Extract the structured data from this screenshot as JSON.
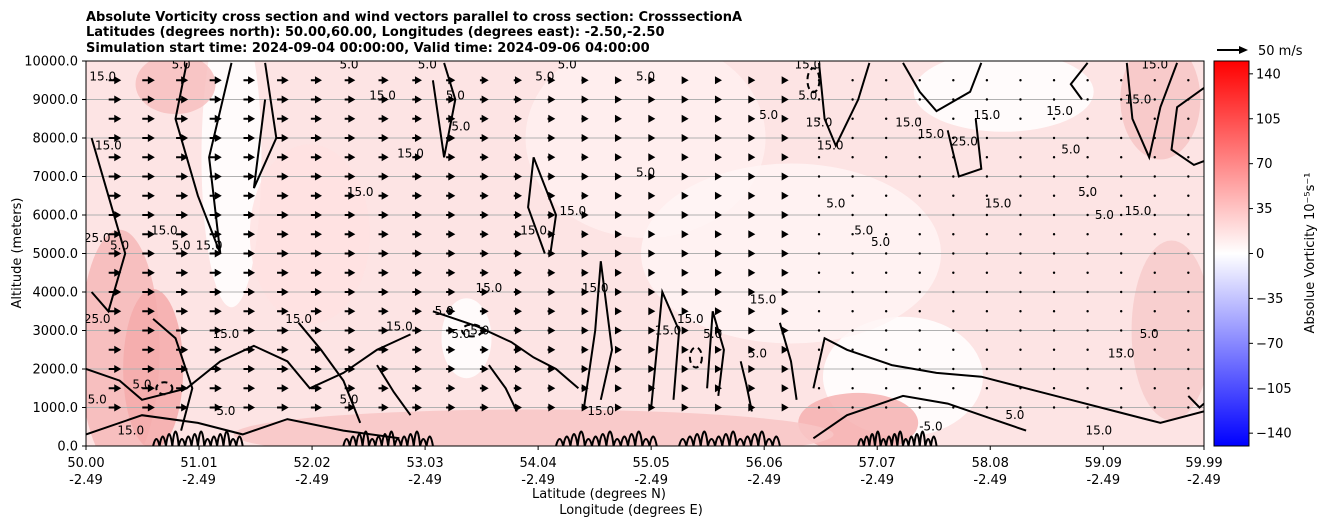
{
  "chart_data": {
    "type": "heatmap",
    "title_lines": [
      "Absolute Vorticity cross section and wind vectors parallel to cross section: CrosssectionA",
      "Latitudes (degrees north): 50.00,60.00, Longitudes (degrees east): -2.50,-2.50",
      "Simulation start time: 2024-09-04 00:00:00, Valid time: 2024-09-06 04:00:00"
    ],
    "ylabel": "Altitude (meters)",
    "xlabel_line1": "Latitude (degrees N)",
    "xlabel_line2": "Longitude (degrees E)",
    "ylim": [
      0,
      10000
    ],
    "yticks": [
      "0.0",
      "1000.0",
      "2000.0",
      "3000.0",
      "4000.0",
      "5000.0",
      "6000.0",
      "7000.0",
      "8000.0",
      "9000.0",
      "10000.0"
    ],
    "xlim": [
      50.0,
      59.99
    ],
    "xticks": [
      {
        "lat": 50.0,
        "label1": "50.00",
        "label2": "-2.49"
      },
      {
        "lat": 51.01,
        "label1": "51.01",
        "label2": "-2.49"
      },
      {
        "lat": 52.02,
        "label1": "52.02",
        "label2": "-2.49"
      },
      {
        "lat": 53.03,
        "label1": "53.03",
        "label2": "-2.49"
      },
      {
        "lat": 54.04,
        "label1": "54.04",
        "label2": "-2.49"
      },
      {
        "lat": 55.05,
        "label1": "55.05",
        "label2": "-2.49"
      },
      {
        "lat": 56.06,
        "label1": "56.06",
        "label2": "-2.49"
      },
      {
        "lat": 57.07,
        "label1": "57.07",
        "label2": "-2.49"
      },
      {
        "lat": 58.08,
        "label1": "58.08",
        "label2": "-2.49"
      },
      {
        "lat": 59.09,
        "label1": "59.09",
        "label2": "-2.49"
      },
      {
        "lat": 59.99,
        "label1": "59.99",
        "label2": "-2.49"
      }
    ],
    "grid": "horizontal",
    "colorbar": {
      "label": "Absolue Vorticity 10⁻⁵s⁻¹",
      "range": [
        -150,
        150
      ],
      "ticks": [
        "140",
        "105",
        "70",
        "35",
        "0",
        "−35",
        "−70",
        "−105",
        "−140"
      ],
      "tick_values": [
        140,
        105,
        70,
        35,
        0,
        -35,
        -70,
        -105,
        -140
      ],
      "colormap": "bwr",
      "colors": {
        "low": "#0000ff",
        "mid": "#ffffff",
        "high": "#ff0000"
      }
    },
    "quiver_key": {
      "label": "50 m/s",
      "value": 50
    },
    "wind_vectors": {
      "direction": "northward (parallel to cross section)",
      "columns_lat": [
        50.25,
        50.55,
        50.85,
        51.15,
        51.45,
        51.75,
        52.05,
        52.35,
        52.65,
        52.95,
        53.25,
        53.55,
        53.85,
        54.15,
        54.45,
        54.75,
        55.05,
        55.35,
        55.65,
        55.95,
        56.25,
        56.55,
        56.85,
        57.15,
        57.45,
        57.75,
        58.05,
        58.35,
        58.65,
        58.95,
        59.25,
        59.55,
        59.85
      ],
      "rows_alt": [
        1000,
        1500,
        2000,
        2500,
        3000,
        3500,
        4000,
        4500,
        5000,
        5500,
        6000,
        6500,
        7000,
        7500,
        8000,
        8500,
        9000,
        9500
      ],
      "speed_by_column": [
        22,
        22,
        21,
        21,
        20,
        20,
        19,
        18,
        17,
        16,
        15,
        14,
        13,
        12,
        11,
        10,
        9,
        8,
        7,
        6,
        5,
        4,
        3,
        2,
        2,
        1,
        1,
        1,
        1,
        1,
        1,
        1,
        1
      ]
    },
    "contour_labels": [
      {
        "text": "15.0",
        "lat": 50.15,
        "alt": 9500
      },
      {
        "text": "5.0",
        "lat": 50.85,
        "alt": 9800
      },
      {
        "text": "15.0",
        "lat": 50.2,
        "alt": 7700
      },
      {
        "text": "25.0",
        "lat": 50.1,
        "alt": 5300
      },
      {
        "text": "5.0",
        "lat": 50.3,
        "alt": 5100
      },
      {
        "text": "25.0",
        "lat": 50.1,
        "alt": 3200
      },
      {
        "text": "5.0",
        "lat": 50.1,
        "alt": 1100
      },
      {
        "text": "15.0",
        "lat": 50.4,
        "alt": 300
      },
      {
        "text": "15.0",
        "lat": 50.7,
        "alt": 5500
      },
      {
        "text": "5.0",
        "lat": 50.85,
        "alt": 5100
      },
      {
        "text": "15.0",
        "lat": 51.1,
        "alt": 5100
      },
      {
        "text": "15.0",
        "lat": 51.25,
        "alt": 2800
      },
      {
        "text": "15.0",
        "lat": 51.9,
        "alt": 3200
      },
      {
        "text": "5.0",
        "lat": 52.35,
        "alt": 1100
      },
      {
        "text": "15.0",
        "lat": 52.65,
        "alt": 9000
      },
      {
        "text": "5.0",
        "lat": 52.35,
        "alt": 9800
      },
      {
        "text": "15.0",
        "lat": 52.9,
        "alt": 7500
      },
      {
        "text": "15.0",
        "lat": 52.45,
        "alt": 6500
      },
      {
        "text": "5.0",
        "lat": 53.05,
        "alt": 9800
      },
      {
        "text": "5.0",
        "lat": 53.3,
        "alt": 9000
      },
      {
        "text": "5.0",
        "lat": 53.35,
        "alt": 8200
      },
      {
        "text": "15.0",
        "lat": 52.8,
        "alt": 3000
      },
      {
        "text": "5.0",
        "lat": 53.2,
        "alt": 3400
      },
      {
        "text": "5.0",
        "lat": 53.35,
        "alt": 2800
      },
      {
        "text": "-5.0",
        "lat": 53.5,
        "alt": 2900
      },
      {
        "text": "15.0",
        "lat": 53.6,
        "alt": 4000
      },
      {
        "text": "15.0",
        "lat": 54.0,
        "alt": 5500
      },
      {
        "text": "15.0",
        "lat": 54.35,
        "alt": 6000
      },
      {
        "text": "5.0",
        "lat": 54.1,
        "alt": 9500
      },
      {
        "text": "5.0",
        "lat": 54.3,
        "alt": 9800
      },
      {
        "text": "15.0",
        "lat": 54.55,
        "alt": 4000
      },
      {
        "text": "15.0",
        "lat": 55.4,
        "alt": 3200
      },
      {
        "text": "5.0",
        "lat": 55.0,
        "alt": 9500
      },
      {
        "text": "5.0",
        "lat": 55.0,
        "alt": 7000
      },
      {
        "text": "15.0",
        "lat": 55.2,
        "alt": 2900
      },
      {
        "text": "5.0",
        "lat": 55.6,
        "alt": 2800
      },
      {
        "text": "5.0",
        "lat": 56.0,
        "alt": 2300
      },
      {
        "text": "15.0",
        "lat": 56.05,
        "alt": 3700
      },
      {
        "text": "5.0",
        "lat": 56.1,
        "alt": 8500
      },
      {
        "text": "15.0",
        "lat": 56.45,
        "alt": 9800
      },
      {
        "text": "5.0",
        "lat": 56.45,
        "alt": 9000
      },
      {
        "text": "15.0",
        "lat": 56.55,
        "alt": 8300
      },
      {
        "text": "15.0",
        "lat": 56.65,
        "alt": 7700
      },
      {
        "text": "5.0",
        "lat": 56.7,
        "alt": 6200
      },
      {
        "text": "5.0",
        "lat": 56.95,
        "alt": 5500
      },
      {
        "text": "5.0",
        "lat": 57.1,
        "alt": 5200
      },
      {
        "text": "15.0",
        "lat": 57.35,
        "alt": 8300
      },
      {
        "text": "15.0",
        "lat": 57.55,
        "alt": 8000
      },
      {
        "text": "25.0",
        "lat": 57.85,
        "alt": 7800
      },
      {
        "text": "15.0",
        "lat": 58.05,
        "alt": 8500
      },
      {
        "text": "15.0",
        "lat": 58.15,
        "alt": 6200
      },
      {
        "text": "15.0",
        "lat": 58.7,
        "alt": 8600
      },
      {
        "text": "5.0",
        "lat": 58.8,
        "alt": 7600
      },
      {
        "text": "5.0",
        "lat": 58.95,
        "alt": 6500
      },
      {
        "text": "5.0",
        "lat": 59.1,
        "alt": 5900
      },
      {
        "text": "15.0",
        "lat": 59.4,
        "alt": 8900
      },
      {
        "text": "15.0",
        "lat": 59.55,
        "alt": 9800
      },
      {
        "text": "15.0",
        "lat": 59.4,
        "alt": 6000
      },
      {
        "text": "15.0",
        "lat": 59.25,
        "alt": 2300
      },
      {
        "text": "5.0",
        "lat": 59.5,
        "alt": 2800
      },
      {
        "text": "15.0",
        "lat": 59.05,
        "alt": 300
      },
      {
        "text": "5.0",
        "lat": 58.3,
        "alt": 700
      },
      {
        "text": "-5.0",
        "lat": 57.55,
        "alt": 400
      },
      {
        "text": "15.0",
        "lat": 54.6,
        "alt": 800
      },
      {
        "text": "5.0",
        "lat": 51.25,
        "alt": 800
      },
      {
        "text": "5.0",
        "lat": 50.5,
        "alt": 1500
      }
    ]
  }
}
